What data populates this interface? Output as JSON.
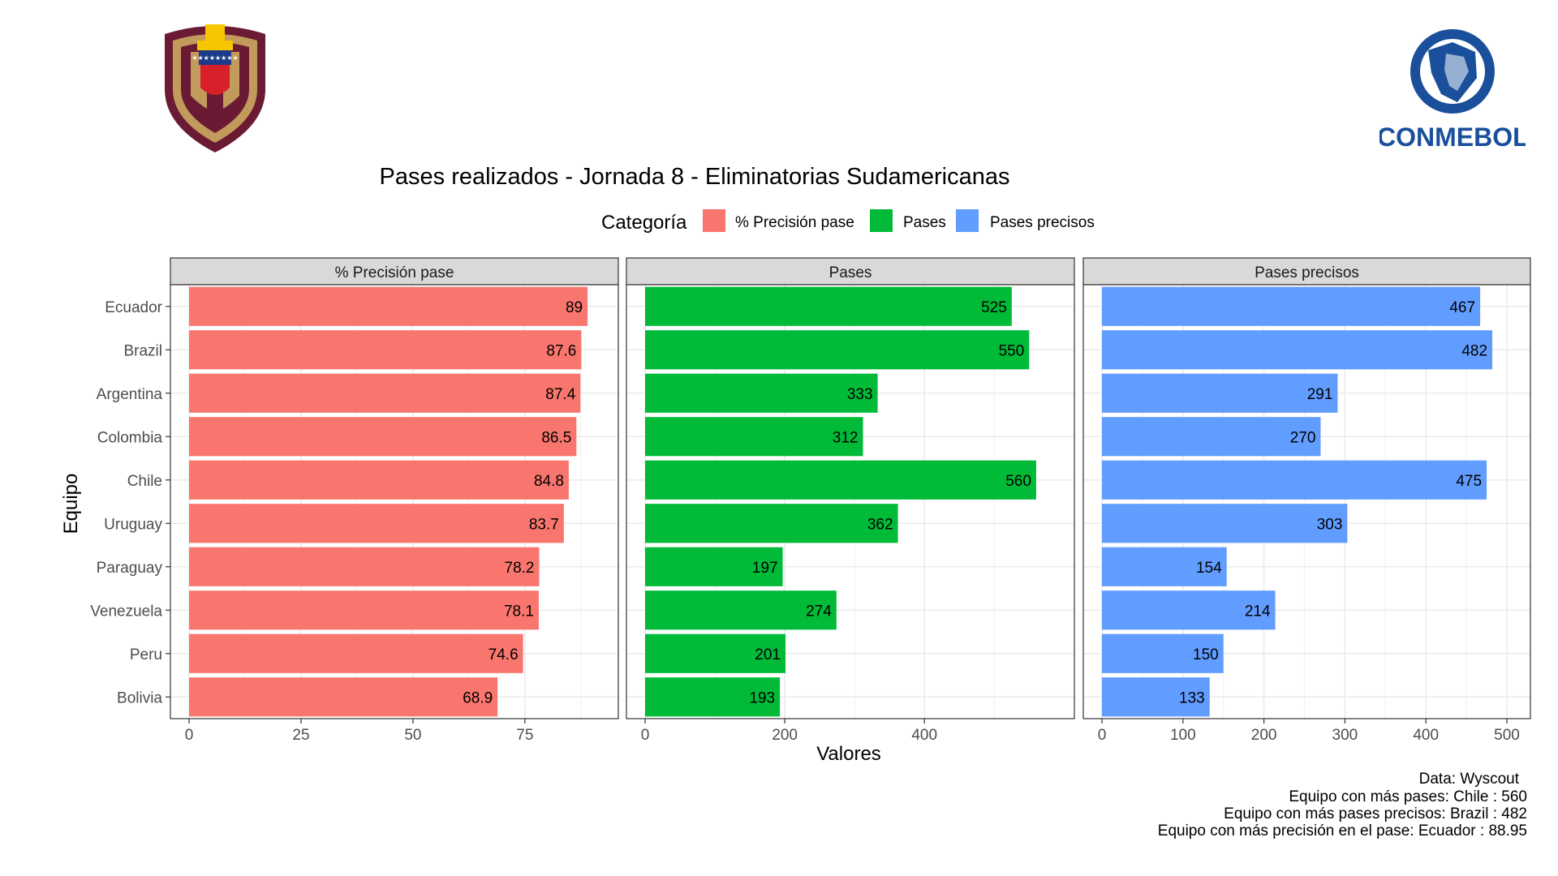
{
  "chart_data": {
    "type": "bar",
    "orientation": "horizontal",
    "facet": true,
    "title": "Pases realizados - Jornada 8 - Eliminatorias Sudamericanas",
    "xlabel": "Valores",
    "ylabel": "Equipo",
    "legend": {
      "title": "Categoría",
      "placement": "top",
      "entries": [
        "% Precisión pase",
        "Pases",
        "Pases precisos"
      ]
    },
    "categories": [
      "Ecuador",
      "Brazil",
      "Argentina",
      "Colombia",
      "Chile",
      "Uruguay",
      "Paraguay",
      "Venezuela",
      "Peru",
      "Bolivia"
    ],
    "series": [
      {
        "name": "% Precisión pase",
        "color": "#F8766D",
        "values": [
          89,
          87.6,
          87.4,
          86.5,
          84.8,
          83.7,
          78.2,
          78.1,
          74.6,
          68.9
        ],
        "xlim": [
          0,
          91.7
        ],
        "ticks": [
          0,
          25,
          50,
          75
        ]
      },
      {
        "name": "Pases",
        "color": "#00BA38",
        "values": [
          525,
          550,
          333,
          312,
          560,
          362,
          197,
          274,
          201,
          193
        ],
        "xlim": [
          0,
          588
        ],
        "ticks": [
          0,
          200,
          400
        ]
      },
      {
        "name": "Pases precisos",
        "color": "#619CFF",
        "values": [
          467,
          482,
          291,
          270,
          475,
          303,
          154,
          214,
          150,
          133
        ],
        "xlim": [
          0,
          506
        ],
        "ticks": [
          0,
          100,
          200,
          300,
          400,
          500
        ]
      }
    ],
    "grid": true,
    "caption": [
      "Data: Wyscout",
      "Equipo con más pases: Chile : 560",
      "Equipo con más pases precisos: Brazil : 482",
      "Equipo con más precisión en el pase: Ecuador : 88.95"
    ]
  },
  "logos": {
    "left": "venezuela-federation-crest",
    "right": "CONMEBOL"
  }
}
